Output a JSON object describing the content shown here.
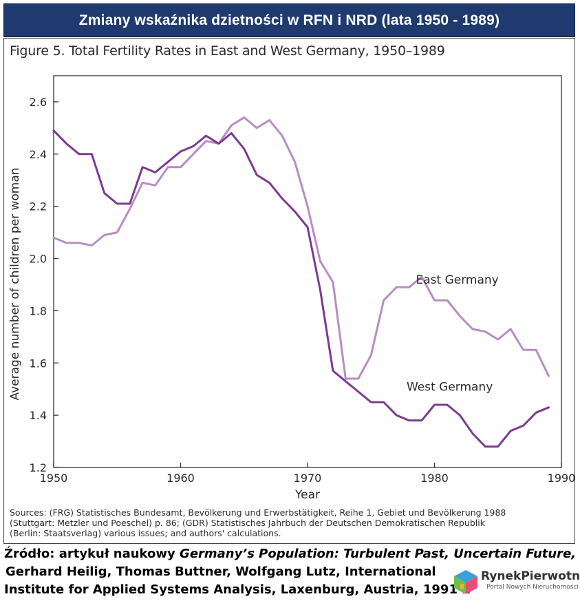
{
  "banner": {
    "title": "Zmiany wskaźnika dzietności w RFN i NRD (lata 1950 - 1989)"
  },
  "figure": {
    "title": "Figure 5. Total Fertility Rates in East and West Germany, 1950–1989"
  },
  "chart_data": {
    "type": "line",
    "title": "Figure 5. Total Fertility Rates in East and West Germany, 1950–1989",
    "xlabel": "Year",
    "ylabel": "Average number of children per woman",
    "xlim": [
      1950,
      1990
    ],
    "ylim": [
      1.2,
      2.7
    ],
    "x_ticks": [
      1950,
      1960,
      1970,
      1980,
      1990
    ],
    "y_ticks": [
      1.2,
      1.4,
      1.6,
      1.8,
      2.0,
      2.2,
      2.4,
      2.6
    ],
    "x_tick_labels": [
      "1950",
      "1960",
      "1970",
      "1980",
      "1990"
    ],
    "y_tick_labels": [
      "1.2",
      "1.4",
      "1.6",
      "1.8",
      "2.0",
      "2.2",
      "2.4",
      "2.6"
    ],
    "grid": false,
    "legend": "inline labels",
    "x": [
      1950,
      1951,
      1952,
      1953,
      1954,
      1955,
      1956,
      1957,
      1958,
      1959,
      1960,
      1961,
      1962,
      1963,
      1964,
      1965,
      1966,
      1967,
      1968,
      1969,
      1970,
      1971,
      1972,
      1973,
      1974,
      1975,
      1976,
      1977,
      1978,
      1979,
      1980,
      1981,
      1982,
      1983,
      1984,
      1985,
      1986,
      1987,
      1988,
      1989
    ],
    "series": [
      {
        "name": "West Germany",
        "color": "#7b3a93",
        "width": 3,
        "values": [
          2.49,
          2.44,
          2.4,
          2.4,
          2.25,
          2.21,
          2.21,
          2.35,
          2.33,
          2.37,
          2.41,
          2.43,
          2.47,
          2.44,
          2.48,
          2.42,
          2.32,
          2.29,
          2.23,
          2.18,
          2.12,
          1.88,
          1.57,
          1.53,
          1.49,
          1.45,
          1.45,
          1.4,
          1.38,
          1.38,
          1.44,
          1.44,
          1.4,
          1.33,
          1.28,
          1.28,
          1.34,
          1.36,
          1.41,
          1.43
        ]
      },
      {
        "name": "East Germany",
        "color": "#b88cc4",
        "width": 3,
        "values": [
          2.08,
          2.06,
          2.06,
          2.05,
          2.09,
          2.1,
          2.19,
          2.29,
          2.28,
          2.35,
          2.35,
          2.4,
          2.45,
          2.44,
          2.51,
          2.54,
          2.5,
          2.53,
          2.47,
          2.37,
          2.2,
          1.99,
          1.91,
          1.54,
          1.54,
          1.63,
          1.84,
          1.89,
          1.89,
          1.93,
          1.84,
          1.84,
          1.78,
          1.73,
          1.72,
          1.69,
          1.73,
          1.65,
          1.65,
          1.55
        ]
      }
    ]
  },
  "sources": {
    "line1": "Sources: (FRG) Statistisches Bundesamt, Bevölkerung und Erwerbstätigkeit, Reihe 1, Gebiet und Bevölkerung 1988",
    "line2": "(Stuttgart: Metzler und Poeschel) p. 86; (GDR) Statistisches Jahrbuch der Deutschen Demokratischen Republik",
    "line3": "(Berlin: Staatsverlag) various issues; and authors' calculations."
  },
  "credit": {
    "prefix": "Źródło: artykuł naukowy ",
    "article": "Germany’s Population: Turbulent Past, Uncertain Future,",
    "line2": "Gerhard Heilig, Thomas Buttner, Wolfgang Lutz, International",
    "line3": "Institute for Applied Systems Analysis, Laxenburg, Austria, 1991 r."
  },
  "logo": {
    "name": "RynekPierwotny",
    "tagline": "Portal Nowych Nieruchomości",
    "icon": "house-cube-icon",
    "colors": [
      "#e94e77",
      "#6cc04a",
      "#3aa0d8",
      "#f2b134"
    ]
  }
}
